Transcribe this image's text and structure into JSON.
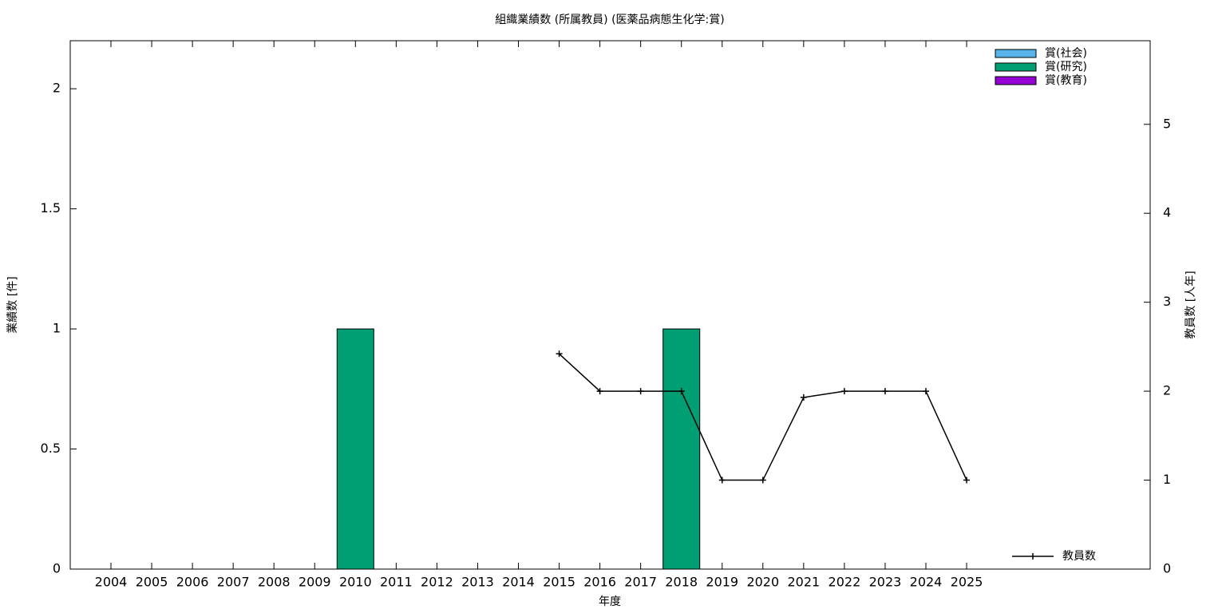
{
  "chart_data": {
    "type": "bar",
    "title": "組織業績数 (所属教員) (医薬品病態生化学:賞)",
    "xlabel": "年度",
    "ylabel": "業績数 [件]",
    "y2label": "教員数 [人年]",
    "stacked": true,
    "categories": [
      "2004",
      "2005",
      "2006",
      "2007",
      "2008",
      "2009",
      "2010",
      "2011",
      "2012",
      "2013",
      "2014",
      "2015",
      "2016",
      "2017",
      "2018",
      "2019",
      "2020",
      "2021",
      "2022",
      "2023",
      "2024",
      "2025"
    ],
    "series": [
      {
        "name": "賞(社会)",
        "color": "#56b4e9",
        "values": [
          0,
          0,
          0,
          0,
          0,
          0,
          0,
          0,
          0,
          0,
          0,
          0,
          0,
          0,
          0,
          0,
          0,
          0,
          0,
          0,
          0,
          0
        ]
      },
      {
        "name": "賞(研究)",
        "color": "#009e73",
        "values": [
          0,
          0,
          0,
          0,
          0,
          0,
          1,
          0,
          0,
          0,
          0,
          0,
          0,
          0,
          1,
          0,
          0,
          0,
          0,
          0,
          0,
          0
        ]
      },
      {
        "name": "賞(教育)",
        "color": "#9400d3",
        "values": [
          0,
          0,
          0,
          0,
          0,
          0,
          0,
          0,
          0,
          0,
          0,
          0,
          0,
          0,
          0,
          0,
          0,
          0,
          0,
          0,
          0,
          0
        ]
      },
      {
        "name": "教員数",
        "type": "line",
        "axis": "y2",
        "color": "#000000",
        "values": [
          null,
          null,
          null,
          null,
          null,
          null,
          null,
          null,
          null,
          null,
          null,
          2.42,
          2,
          2,
          2,
          1,
          1,
          1.93,
          2,
          2,
          2,
          1
        ]
      }
    ],
    "ylim": [
      0,
      2.2
    ],
    "yticks": [
      0,
      0.5,
      1,
      1.5,
      2
    ],
    "y2lim": [
      0,
      5.94
    ],
    "y2ticks": [
      0,
      1,
      2,
      3,
      4,
      5
    ],
    "legend": "top right"
  }
}
